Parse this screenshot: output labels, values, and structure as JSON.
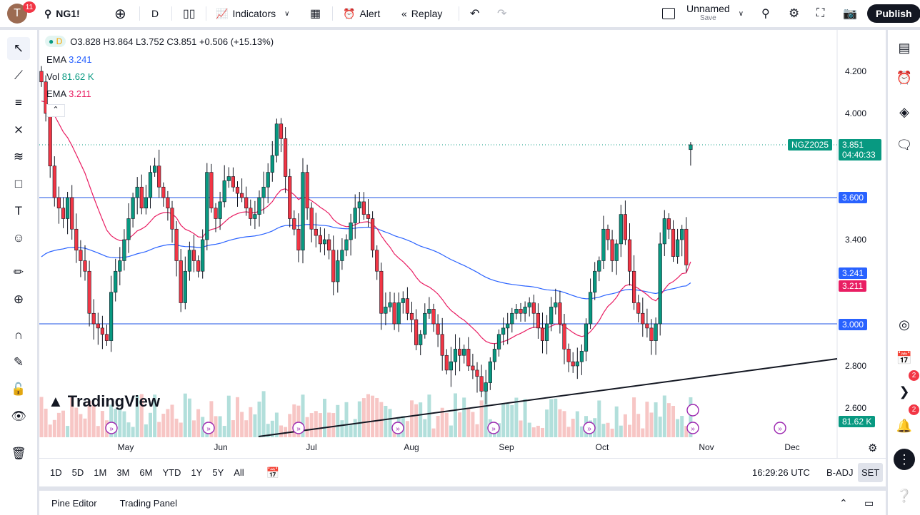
{
  "topbar": {
    "avatar_letter": "T",
    "avatar_badge": "11",
    "symbol": "NG1!",
    "interval": "D",
    "indicators": "Indicators",
    "alert": "Alert",
    "replay": "Replay",
    "layout_name": "Unnamed",
    "layout_save": "Save",
    "publish": "Publish"
  },
  "legend": {
    "interval_badge": "D",
    "ohlc": "O3.828 H3.864 L3.752 C3.851 +0.506 (+15.13%)",
    "ema1_label": "EMA",
    "ema1_value": "3.241",
    "vol_label": "Vol",
    "vol_value": "81.62 K",
    "ema2_label": "EMA",
    "ema2_value": "3.211"
  },
  "price_axis": {
    "ticks": [
      "4.200",
      "4.000",
      "3.400",
      "2.800",
      "2.600"
    ],
    "symbol_tag": "NGZ2025",
    "last_price": "3.851",
    "countdown": "04:40:33",
    "hline_upper": "3.600",
    "hline_lower": "3.000",
    "ema_slow": "3.241",
    "ema_fast": "3.211",
    "volume": "81.62 K"
  },
  "time_axis": [
    "May",
    "Jun",
    "Jul",
    "Aug",
    "Sep",
    "Oct",
    "Nov",
    "Dec"
  ],
  "ranges": [
    "1D",
    "5D",
    "1M",
    "3M",
    "6M",
    "YTD",
    "1Y",
    "5Y",
    "All"
  ],
  "clock": "16:29:26 UTC",
  "badj": "B-ADJ",
  "set": "SET",
  "bottom_tabs": [
    "Pine Editor",
    "Trading Panel"
  ],
  "watermark": "TradingView",
  "badges": {
    "ideas": "2",
    "alerts": "2"
  },
  "colors": {
    "up": "#089981",
    "down": "#f23645",
    "ema_slow": "#2962ff",
    "ema_fast": "#e91e63",
    "hline": "#1e53e5"
  },
  "chart_data": {
    "type": "candlestick",
    "symbol": "NG1!",
    "ylim": [
      2.6,
      4.25
    ],
    "hlines": [
      3.6,
      3.0
    ],
    "last": {
      "o": 3.828,
      "h": 3.864,
      "l": 3.752,
      "c": 3.851
    },
    "closes": [
      4.15,
      4.0,
      3.75,
      3.6,
      3.55,
      3.5,
      3.6,
      3.45,
      3.35,
      3.3,
      3.25,
      3.05,
      3.0,
      2.98,
      2.95,
      2.92,
      3.15,
      3.25,
      3.3,
      3.4,
      3.5,
      3.6,
      3.65,
      3.55,
      3.6,
      3.72,
      3.75,
      3.65,
      3.6,
      3.55,
      3.45,
      3.3,
      3.1,
      3.25,
      3.35,
      3.3,
      3.25,
      3.4,
      3.72,
      3.55,
      3.5,
      3.58,
      3.68,
      3.7,
      3.65,
      3.62,
      3.6,
      3.55,
      3.5,
      3.52,
      3.6,
      3.65,
      3.72,
      3.8,
      3.95,
      3.88,
      3.7,
      3.5,
      3.45,
      3.35,
      3.72,
      3.55,
      3.45,
      3.42,
      3.38,
      3.4,
      3.35,
      3.2,
      3.3,
      3.35,
      3.4,
      3.48,
      3.55,
      3.58,
      3.52,
      3.5,
      3.35,
      3.25,
      3.05,
      3.08,
      3.1,
      3.0,
      3.1,
      3.12,
      3.05,
      3.02,
      2.9,
      2.95,
      3.05,
      3.07,
      3.0,
      2.95,
      2.85,
      2.78,
      2.82,
      2.88,
      2.85,
      2.88,
      2.8,
      2.78,
      2.75,
      2.68,
      2.72,
      2.82,
      2.88,
      2.95,
      2.98,
      3.0,
      3.05,
      3.07,
      3.05,
      3.08,
      3.1,
      3.05,
      2.98,
      2.92,
      3.0,
      3.08,
      3.1,
      3.0,
      2.88,
      2.82,
      2.8,
      2.82,
      2.87,
      3.0,
      3.15,
      3.25,
      3.3,
      3.45,
      3.4,
      3.3,
      3.38,
      3.52,
      3.4,
      3.25,
      3.1,
      3.05,
      3.0,
      2.98,
      2.92,
      3.0,
      3.38,
      3.5,
      3.45,
      3.32,
      3.4,
      3.45,
      3.28
    ]
  }
}
